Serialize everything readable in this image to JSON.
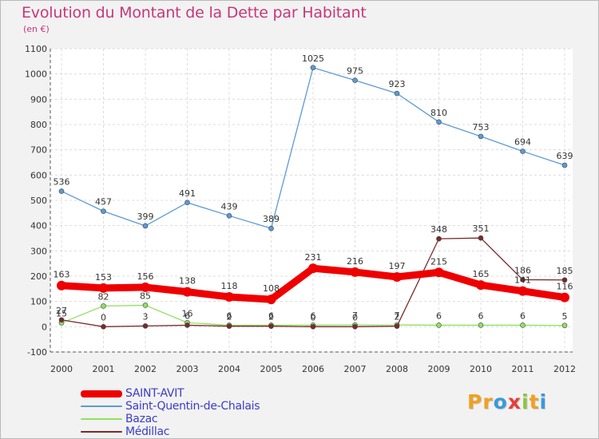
{
  "title": "Evolution du Montant de la Dette par Habitant",
  "subtitle": "(en €)",
  "logo": {
    "text": "Proxiti",
    "letters": [
      "P",
      "r",
      "o",
      "x",
      "i",
      "t",
      "i"
    ],
    "colors": [
      "#f0a020",
      "#f0a020",
      "#3a9ad8",
      "#e83c3c",
      "#8cc63f",
      "#f0a020",
      "#3a9ad8"
    ]
  },
  "chart_data": {
    "type": "line",
    "x": [
      "2000",
      "2001",
      "2002",
      "2003",
      "2004",
      "2005",
      "2006",
      "2007",
      "2008",
      "2009",
      "2010",
      "2011",
      "2012"
    ],
    "ylim": [
      -100,
      1100
    ],
    "yticks": [
      -100,
      0,
      100,
      200,
      300,
      400,
      500,
      600,
      700,
      800,
      900,
      1000,
      1100
    ],
    "grid": true,
    "legend": "bottom-left",
    "series": [
      {
        "name": "Saint-Quentin-de-Chalais",
        "color": "#5b9bd5",
        "values": [
          536,
          457,
          399,
          491,
          439,
          389,
          1025,
          975,
          923,
          810,
          753,
          694,
          639
        ],
        "labels": [
          "536",
          "457",
          "399",
          "491",
          "439",
          "389",
          "1025",
          "975",
          "923",
          "810",
          "753",
          "694",
          "639"
        ]
      },
      {
        "name": "Bazac",
        "color": "#90e060",
        "values": [
          15,
          82,
          85,
          16,
          6,
          6,
          6,
          7,
          7,
          6,
          6,
          6,
          5
        ],
        "labels": [
          "15",
          "82",
          "85",
          "16",
          "6",
          "6",
          "6",
          "7",
          "7",
          "6",
          "6",
          "6",
          "5"
        ]
      },
      {
        "name": "Médillac",
        "color": "#7a2a2a",
        "values": [
          27,
          0,
          3,
          6,
          2,
          2,
          0,
          0,
          2,
          348,
          351,
          186,
          185
        ],
        "labels": [
          "27",
          "0",
          "3",
          "6",
          "2",
          "2",
          "0",
          "0",
          "2",
          "348",
          "351",
          "186",
          "185"
        ]
      },
      {
        "name": "SAINT-AVIT",
        "color": "#ee0000",
        "values": [
          163,
          153,
          156,
          138,
          118,
          108,
          231,
          216,
          197,
          215,
          165,
          141,
          116
        ],
        "labels": [
          "163",
          "153",
          "156",
          "138",
          "118",
          "108",
          "231",
          "216",
          "197",
          "215",
          "165",
          "141",
          "116"
        ]
      }
    ],
    "legend_order": [
      "SAINT-AVIT",
      "Saint-Quentin-de-Chalais",
      "Bazac",
      "Médillac"
    ]
  }
}
